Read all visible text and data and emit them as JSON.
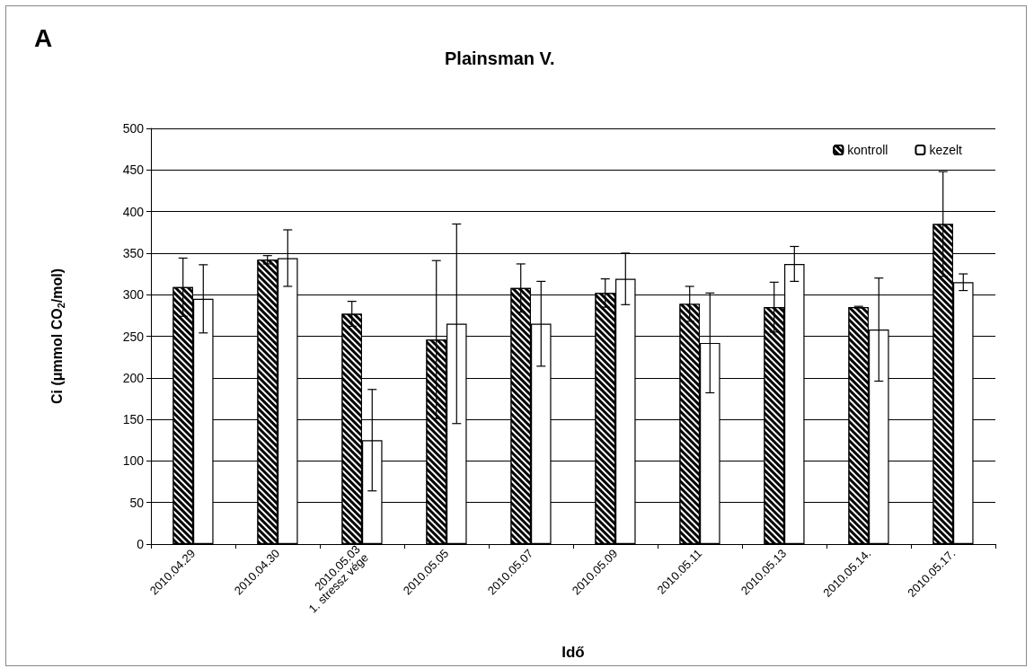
{
  "chart_data": {
    "type": "bar",
    "title": "Plainsman V.",
    "xlabel": "Idő",
    "ylabel": "Ci (μmmol CO$_{2}$/mol)",
    "annotations": [
      "A"
    ],
    "categories": [
      "2010.04.29",
      "2010.04.30",
      "2010.05.03\n1. stressz vége",
      "2010.05.05",
      "2010.05.07",
      "2010.05.09",
      "2010.05.11",
      "2010.05.13",
      "2010.05.14.",
      "2010.05.17."
    ],
    "series": [
      {
        "name": "kontroll",
        "color": "#000000",
        "values": [
          309,
          342,
          277,
          246,
          308,
          302,
          289,
          285,
          285,
          385
        ],
        "errors": [
          35,
          5,
          15,
          95,
          29,
          17,
          21,
          30,
          1,
          63
        ]
      },
      {
        "name": "kezelt",
        "color": "#ffffff",
        "values": [
          295,
          344,
          125,
          265,
          265,
          319,
          242,
          337,
          258,
          315
        ],
        "errors": [
          41,
          34,
          61,
          120,
          51,
          31,
          60,
          21,
          62,
          10
        ]
      }
    ],
    "ylim": [
      0,
      500
    ],
    "yticks": [
      0,
      50,
      100,
      150,
      200,
      250,
      300,
      350,
      400,
      450,
      500
    ],
    "grid": "y",
    "legend": "top right"
  }
}
